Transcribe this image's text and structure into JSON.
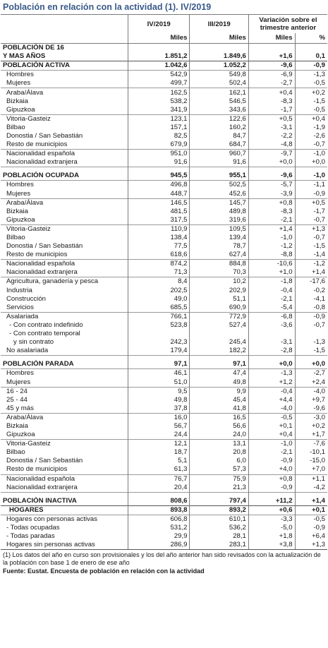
{
  "title": "Población en relación con la actividad (1). IV/2019",
  "header": {
    "col1": "IV/2019",
    "col2": "III/2019",
    "col3": "Variación sobre el trimestre anterior",
    "unit1": "Miles",
    "unit2": "Miles",
    "unit3": "Miles",
    "unit4": "%"
  },
  "rows": [
    {
      "label": "POBLACIÓN DE 16",
      "v": [
        "",
        "",
        "",
        ""
      ],
      "cls": "sec bsep",
      "ind": 0
    },
    {
      "label": "Y MAS AÑOS",
      "v": [
        "1.851,2",
        "1.849,6",
        "+1,6",
        "0,1"
      ],
      "cls": "sec",
      "ind": 0
    },
    {
      "label": "POBLACIÓN ACTIVA",
      "v": [
        "1.042,6",
        "1.052,2",
        "-9,6",
        "-0,9"
      ],
      "cls": "sec bsep",
      "ind": 0
    },
    {
      "label": "Hombres",
      "v": [
        "542,9",
        "549,8",
        "-6,9",
        "-1,3"
      ],
      "cls": "sep",
      "ind": 1
    },
    {
      "label": "Mujeres",
      "v": [
        "499,7",
        "502,4",
        "-2,7",
        "-0,5"
      ],
      "cls": "",
      "ind": 1
    },
    {
      "label": "Araba/Álava",
      "v": [
        "162,5",
        "162,1",
        "+0,4",
        "+0,2"
      ],
      "cls": "sep",
      "ind": 1
    },
    {
      "label": "Bizkaia",
      "v": [
        "538,2",
        "546,5",
        "-8,3",
        "-1,5"
      ],
      "cls": "",
      "ind": 1
    },
    {
      "label": "Gipuzkoa",
      "v": [
        "341,9",
        "343,6",
        "-1,7",
        "-0,5"
      ],
      "cls": "",
      "ind": 1
    },
    {
      "label": "Vitoria-Gasteiz",
      "v": [
        "123,1",
        "122,6",
        "+0,5",
        "+0,4"
      ],
      "cls": "sep",
      "ind": 1
    },
    {
      "label": "Bilbao",
      "v": [
        "157,1",
        "160,2",
        "-3,1",
        "-1,9"
      ],
      "cls": "",
      "ind": 1
    },
    {
      "label": "Donostia / San Sebastián",
      "v": [
        "82,5",
        "84,7",
        "-2,2",
        "-2,6"
      ],
      "cls": "",
      "ind": 1
    },
    {
      "label": "Resto de municipios",
      "v": [
        "679,9",
        "684,7",
        "-4,8",
        "-0,7"
      ],
      "cls": "",
      "ind": 1
    },
    {
      "label": "Nacionalidad española",
      "v": [
        "951,0",
        "960,7",
        "-9,7",
        "-1,0"
      ],
      "cls": "sep",
      "ind": 1
    },
    {
      "label": "Nacionalidad extranjera",
      "v": [
        "91,6",
        "91,6",
        "+0,0",
        "+0,0"
      ],
      "cls": "",
      "ind": 1
    },
    {
      "label": "",
      "v": [
        "",
        "",
        "",
        ""
      ],
      "cls": "gap sep",
      "ind": 0
    },
    {
      "label": "POBLACIÓN OCUPADA",
      "v": [
        "945,5",
        "955,1",
        "-9,6",
        "-1,0"
      ],
      "cls": "sec",
      "ind": 0
    },
    {
      "label": "Hombres",
      "v": [
        "496,8",
        "502,5",
        "-5,7",
        "-1,1"
      ],
      "cls": "sep",
      "ind": 1
    },
    {
      "label": "Mujeres",
      "v": [
        "448,7",
        "452,6",
        "-3,9",
        "-0,9"
      ],
      "cls": "",
      "ind": 1
    },
    {
      "label": "Araba/Álava",
      "v": [
        "146,5",
        "145,7",
        "+0,8",
        "+0,5"
      ],
      "cls": "sep",
      "ind": 1
    },
    {
      "label": "Bizkaia",
      "v": [
        "481,5",
        "489,8",
        "-8,3",
        "-1,7"
      ],
      "cls": "",
      "ind": 1
    },
    {
      "label": "Gipuzkoa",
      "v": [
        "317,5",
        "319,6",
        "-2,1",
        "-0,7"
      ],
      "cls": "",
      "ind": 1
    },
    {
      "label": "Vitoria-Gasteiz",
      "v": [
        "110,9",
        "109,5",
        "+1,4",
        "+1,3"
      ],
      "cls": "sep",
      "ind": 1
    },
    {
      "label": "Bilbao",
      "v": [
        "138,4",
        "139,4",
        "-1,0",
        "-0,7"
      ],
      "cls": "",
      "ind": 1
    },
    {
      "label": "Donostia / San Sebastián",
      "v": [
        "77,5",
        "78,7",
        "-1,2",
        "-1,5"
      ],
      "cls": "",
      "ind": 1
    },
    {
      "label": "Resto de municipios",
      "v": [
        "618,6",
        "627,4",
        "-8,8",
        "-1,4"
      ],
      "cls": "",
      "ind": 1
    },
    {
      "label": "Nacionalidad española",
      "v": [
        "874,2",
        "884,8",
        "-10,6",
        "-1,2"
      ],
      "cls": "sep",
      "ind": 1
    },
    {
      "label": "Nacionalidad extranjera",
      "v": [
        "71,3",
        "70,3",
        "+1,0",
        "+1,4"
      ],
      "cls": "",
      "ind": 1
    },
    {
      "label": "Agricultura, ganadería y pesca",
      "v": [
        "8,4",
        "10,2",
        "-1,8",
        "-17,6"
      ],
      "cls": "sep",
      "ind": 1
    },
    {
      "label": "Industria",
      "v": [
        "202,5",
        "202,9",
        "-0,4",
        "-0,2"
      ],
      "cls": "",
      "ind": 1
    },
    {
      "label": "Construcción",
      "v": [
        "49,0",
        "51,1",
        "-2,1",
        "-4,1"
      ],
      "cls": "",
      "ind": 1
    },
    {
      "label": "Servicios",
      "v": [
        "685,5",
        "690,9",
        "-5,4",
        "-0,8"
      ],
      "cls": "",
      "ind": 1
    },
    {
      "label": "Asalariada",
      "v": [
        "766,1",
        "772,9",
        "-6,8",
        "-0,9"
      ],
      "cls": "sep",
      "ind": 1
    },
    {
      "label": "- Con contrato indefinido",
      "v": [
        "523,8",
        "527,4",
        "-3,6",
        "-0,7"
      ],
      "cls": "",
      "ind": 2
    },
    {
      "label": "- Con contrato temporal",
      "v": [
        "",
        "",
        "",
        ""
      ],
      "cls": "",
      "ind": 2
    },
    {
      "label": "y sin contrato",
      "v": [
        "242,3",
        "245,4",
        "-3,1",
        "-1,3"
      ],
      "cls": "",
      "ind": 3
    },
    {
      "label": "No asalariada",
      "v": [
        "179,4",
        "182,2",
        "-2,8",
        "-1,5"
      ],
      "cls": "",
      "ind": 1
    },
    {
      "label": "",
      "v": [
        "",
        "",
        "",
        ""
      ],
      "cls": "gap sep",
      "ind": 0
    },
    {
      "label": "POBLACIÓN PARADA",
      "v": [
        "97,1",
        "97,1",
        "+0,0",
        "+0,0"
      ],
      "cls": "sec",
      "ind": 0
    },
    {
      "label": "Hombres",
      "v": [
        "46,1",
        "47,4",
        "-1,3",
        "-2,7"
      ],
      "cls": "sep",
      "ind": 1
    },
    {
      "label": "Mujeres",
      "v": [
        "51,0",
        "49,8",
        "+1,2",
        "+2,4"
      ],
      "cls": "",
      "ind": 1
    },
    {
      "label": "16 - 24",
      "v": [
        "9,5",
        "9,9",
        "-0,4",
        "-4,0"
      ],
      "cls": "sep",
      "ind": 1
    },
    {
      "label": "25 - 44",
      "v": [
        "49,8",
        "45,4",
        "+4,4",
        "+9,7"
      ],
      "cls": "",
      "ind": 1
    },
    {
      "label": "45 y más",
      "v": [
        "37,8",
        "41,8",
        "-4,0",
        "-9,6"
      ],
      "cls": "",
      "ind": 1
    },
    {
      "label": "Araba/Álava",
      "v": [
        "16,0",
        "16,5",
        "-0,5",
        "-3,0"
      ],
      "cls": "sep",
      "ind": 1
    },
    {
      "label": "Bizkaia",
      "v": [
        "56,7",
        "56,6",
        "+0,1",
        "+0,2"
      ],
      "cls": "",
      "ind": 1
    },
    {
      "label": "Gipuzkoa",
      "v": [
        "24,4",
        "24,0",
        "+0,4",
        "+1,7"
      ],
      "cls": "",
      "ind": 1
    },
    {
      "label": "Vitoria-Gasteiz",
      "v": [
        "12,1",
        "13,1",
        "-1,0",
        "-7,6"
      ],
      "cls": "sep",
      "ind": 1
    },
    {
      "label": "Bilbao",
      "v": [
        "18,7",
        "20,8",
        "-2,1",
        "-10,1"
      ],
      "cls": "",
      "ind": 1
    },
    {
      "label": "Donostia / San Sebastián",
      "v": [
        "5,1",
        "6,0",
        "-0,9",
        "-15,0"
      ],
      "cls": "",
      "ind": 1
    },
    {
      "label": "Resto de municipios",
      "v": [
        "61,3",
        "57,3",
        "+4,0",
        "+7,0"
      ],
      "cls": "",
      "ind": 1
    },
    {
      "label": "Nacionalidad española",
      "v": [
        "76,7",
        "75,9",
        "+0,8",
        "+1,1"
      ],
      "cls": "sep",
      "ind": 1
    },
    {
      "label": "Nacionalidad extranjera",
      "v": [
        "20,4",
        "21,3",
        "-0,9",
        "-4,2"
      ],
      "cls": "",
      "ind": 1
    },
    {
      "label": "",
      "v": [
        "",
        "",
        "",
        ""
      ],
      "cls": "gap sep",
      "ind": 0
    },
    {
      "label": "POBLACIÓN INACTIVA",
      "v": [
        "808,6",
        "797,4",
        "+11,2",
        "+1,4"
      ],
      "cls": "sec",
      "ind": 0
    },
    {
      "label": "HOGARES",
      "v": [
        "893,8",
        "893,2",
        "+0,6",
        "+0,1"
      ],
      "cls": "sec bsep",
      "ind": 2
    },
    {
      "label": "Hogares con personas activas",
      "v": [
        "606,8",
        "610,1",
        "-3,3",
        "-0,5"
      ],
      "cls": "sep",
      "ind": 1
    },
    {
      "label": "- Todas ocupadas",
      "v": [
        "531,2",
        "536,2",
        "-5,0",
        "-0,9"
      ],
      "cls": "",
      "ind": 1
    },
    {
      "label": "- Todas paradas",
      "v": [
        "29,9",
        "28,1",
        "+1,8",
        "+6,4"
      ],
      "cls": "",
      "ind": 1
    },
    {
      "label": "Hogares sin personas activas",
      "v": [
        "286,9",
        "283,1",
        "+3,8",
        "+1,3"
      ],
      "cls": "last",
      "ind": 1
    }
  ],
  "footnote": "(1) Los datos del año en curso son provisionales y los del año anterior han sido revisados con la actualización de la población con base 1 de enero de ese año",
  "source": "Fuente: Eustat. Encuesta de población en relación con la actividad"
}
